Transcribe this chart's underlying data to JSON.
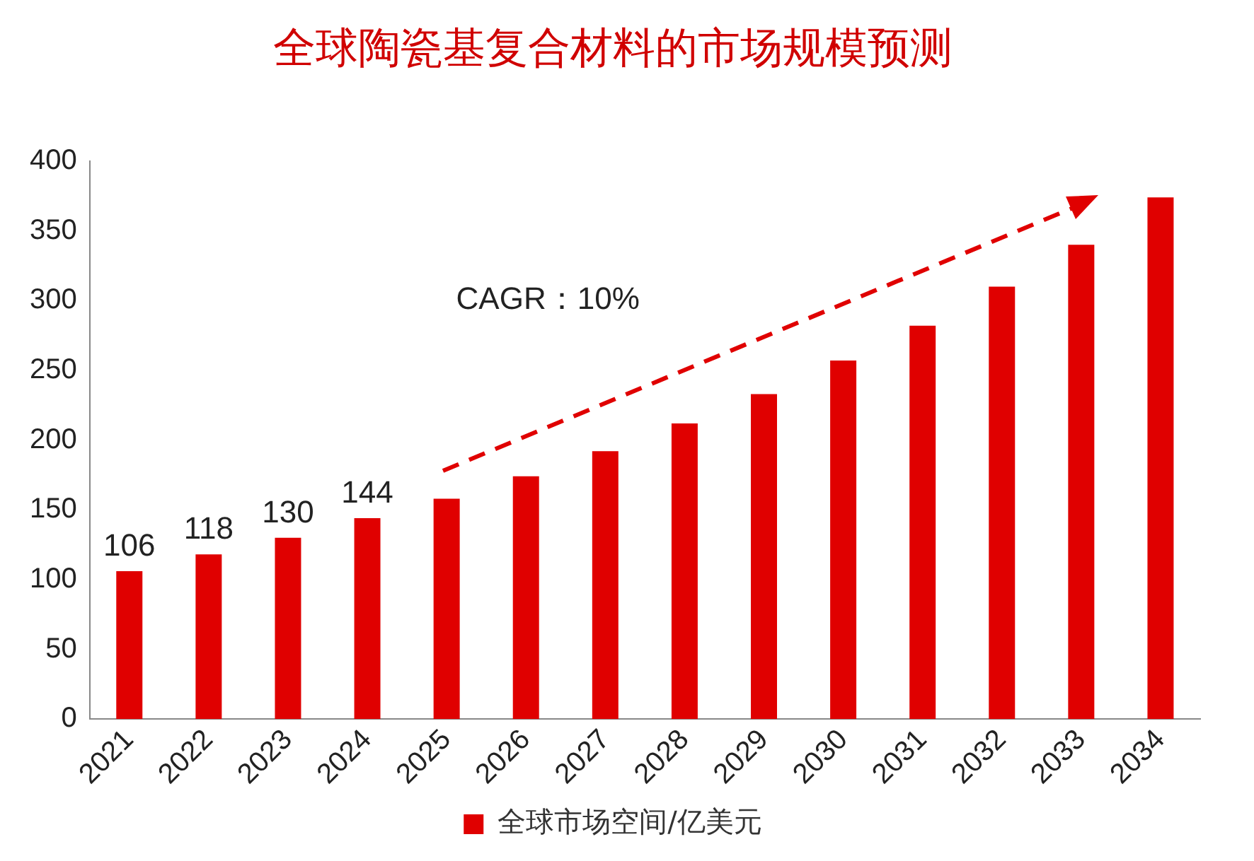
{
  "chart_data": {
    "type": "bar",
    "title": "全球陶瓷基复合材料的市场规模预测",
    "categories": [
      "2021",
      "2022",
      "2023",
      "2024",
      "2025",
      "2026",
      "2027",
      "2028",
      "2029",
      "2030",
      "2031",
      "2032",
      "2033",
      "2034"
    ],
    "series": [
      {
        "name": "全球市场空间/亿美元",
        "color": "#e00000",
        "values": [
          106,
          118,
          130,
          144,
          158,
          174,
          192,
          212,
          233,
          257,
          282,
          310,
          340,
          374
        ],
        "value_labels": [
          "106",
          "118",
          "130",
          "144",
          null,
          null,
          null,
          null,
          null,
          null,
          null,
          null,
          null,
          null
        ]
      }
    ],
    "ylim": [
      0,
      400
    ],
    "yticks": [
      0,
      50,
      100,
      150,
      200,
      250,
      300,
      350,
      400
    ],
    "grid": false,
    "legend": "bottom",
    "annotations": [
      "CAGR：10%"
    ]
  }
}
